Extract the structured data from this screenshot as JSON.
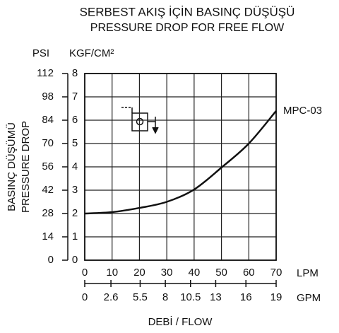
{
  "chart_data": {
    "type": "line",
    "title": "SERBEST AKIŞ İÇİN BASINÇ DÜŞÜŞÜ",
    "subtitle": "PRESSURE DROP FOR FREE FLOW",
    "ylabel": "BASINÇ DÜŞÜMÜ",
    "ylabel_en": "PRESSURE DROP",
    "xlabel": "DEBİ",
    "xlabel_en": " / FLOW",
    "y_unit": "KGF/CM²",
    "y2_unit": "PSI",
    "x_unit": "LPM",
    "x2_unit": "GPM",
    "x": [
      0,
      10,
      20,
      30,
      40,
      50,
      60,
      70
    ],
    "series": [
      {
        "name": "MPC-03",
        "color": "#111111",
        "values": [
          2.0,
          2.06,
          2.24,
          2.5,
          3.03,
          3.97,
          5.0,
          6.4
        ]
      }
    ],
    "xlim": [
      0,
      70
    ],
    "xticks": [
      0,
      10,
      20,
      30,
      40,
      50,
      60,
      70
    ],
    "x2lim": [
      0,
      19
    ],
    "x2ticks": [
      0,
      2.6,
      5.5,
      8,
      10.5,
      13,
      16,
      19
    ],
    "ylim": [
      0,
      8
    ],
    "yticks": [
      0,
      1,
      2,
      3,
      4,
      5,
      6,
      7,
      8
    ],
    "y2lim": [
      0,
      112
    ],
    "y2ticks": [
      0,
      14,
      28,
      42,
      56,
      70,
      84,
      98,
      112
    ],
    "grid": true
  }
}
